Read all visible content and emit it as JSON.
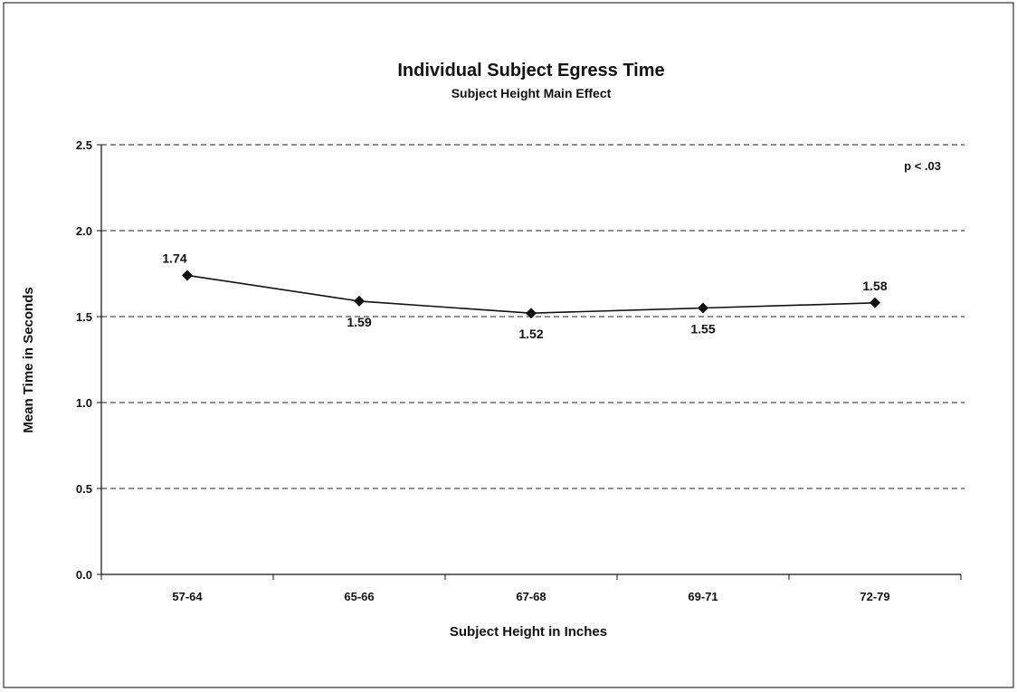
{
  "chart_data": {
    "type": "line",
    "title": "Individual Subject Egress Time",
    "subtitle": "Subject Height Main Effect",
    "xlabel": "Subject Height in Inches",
    "ylabel": "Mean Time in Seconds",
    "categories": [
      "57-64",
      "65-66",
      "67-68",
      "69-71",
      "72-79"
    ],
    "series": [
      {
        "values": [
          1.74,
          1.59,
          1.52,
          1.55,
          1.58
        ]
      }
    ],
    "data_labels": [
      "1.74",
      "1.59",
      "1.52",
      "1.55",
      "1.58"
    ],
    "ylim": [
      0,
      2.5
    ],
    "yticks": [
      "0.0",
      "0.5",
      "1.0",
      "1.5",
      "2.0",
      "2.5"
    ],
    "grid": "horizontal dashed",
    "marker": "diamond",
    "annotation": "p < .03",
    "colors": {
      "line": "#111111",
      "grid": "#222222",
      "frame": "#333333"
    }
  }
}
